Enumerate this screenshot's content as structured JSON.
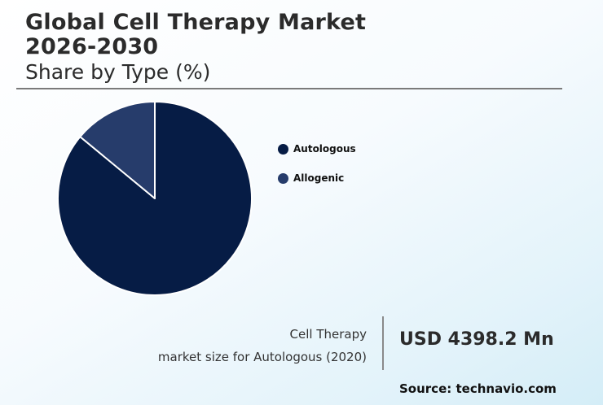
{
  "header": {
    "title_line1": "Global Cell Therapy Market",
    "title_line2": "2026-2030",
    "subtitle": "Share by Type (%)"
  },
  "chart_data": {
    "type": "pie",
    "categories": [
      "Autologous",
      "Allogenic"
    ],
    "values": [
      86,
      14
    ],
    "colors": [
      "#061c45",
      "#263c6b"
    ],
    "legend_position": "right"
  },
  "callout": {
    "caption_line1": "Cell Therapy",
    "caption_line2": "market size for Autologous (2020)",
    "value": "USD 4398.2 Mn"
  },
  "footer": {
    "source": "Source: technavio.com"
  }
}
